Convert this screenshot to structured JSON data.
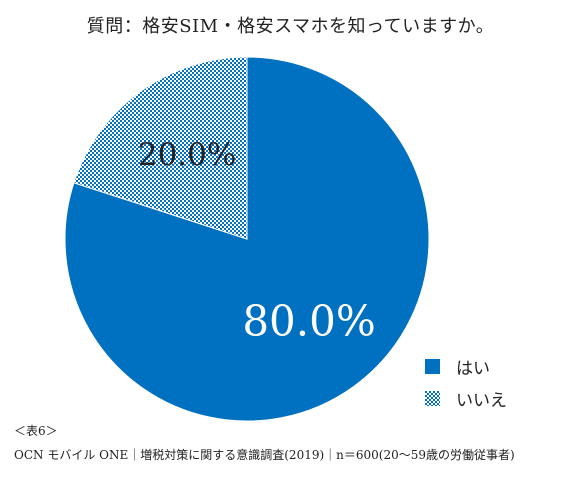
{
  "chart_data": {
    "type": "pie",
    "title": "質問：格安SIM・格安スマホを知っていますか。",
    "categories": [
      "はい",
      "いいえ"
    ],
    "values": [
      80.0,
      20.0
    ],
    "labels": [
      "80.0%",
      "20.0%"
    ],
    "legend": {
      "placement": "bottom-right",
      "entries": [
        "はい",
        "いいえ"
      ]
    },
    "colors": {
      "はい": "#0070c0",
      "いいえ": "#0070c0"
    }
  },
  "footer": {
    "note": "＜表6＞",
    "source": "OCN モバイル ONE｜増税対策に関する意識調査(2019)｜n＝600(20～59歳の労働従事者)"
  }
}
